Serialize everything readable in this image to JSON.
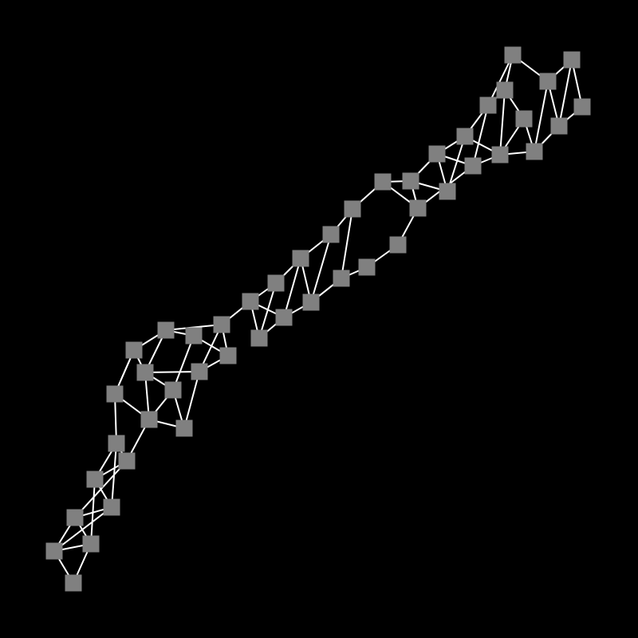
{
  "colors": {
    "background": "#000000",
    "edge": "#ffffff",
    "node": "#808080"
  },
  "graph": {
    "node_count": 52,
    "node_shape": "square"
  }
}
